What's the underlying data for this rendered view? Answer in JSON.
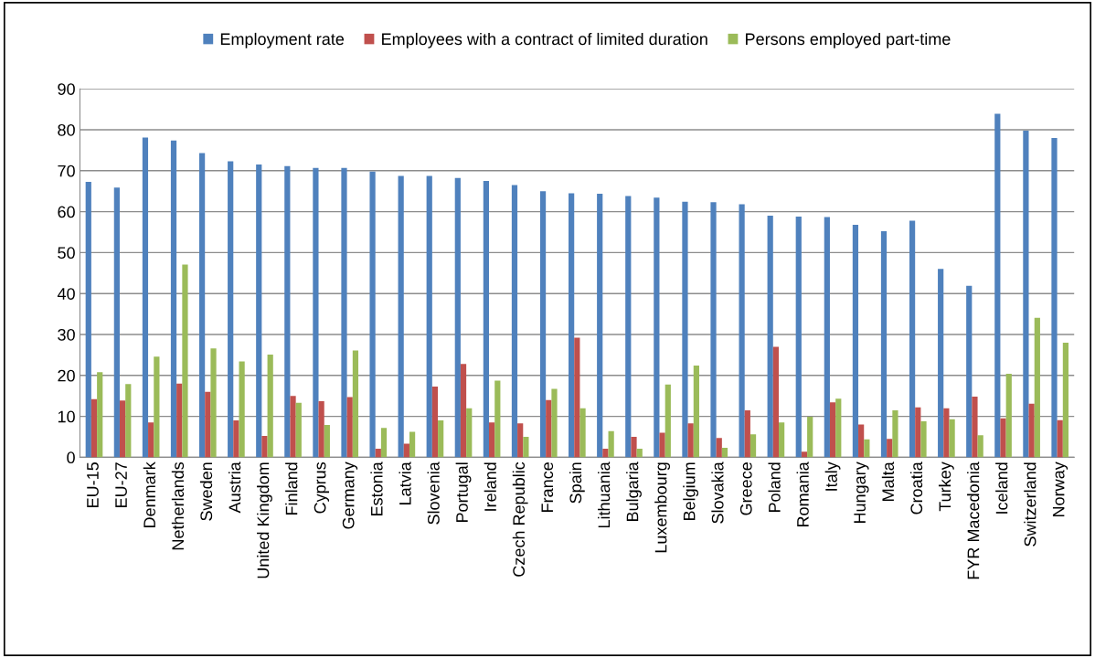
{
  "chart_data": {
    "type": "bar",
    "categories": [
      "EU-15",
      "EU-27",
      "Denmark",
      "Netherlands",
      "Sweden",
      "Austria",
      "United Kingdom",
      "Finland",
      "Cyprus",
      "Germany",
      "Estonia",
      "Latvia",
      "Slovenia",
      "Portugal",
      "Ireland",
      "Czech Republic",
      "France",
      "Spain",
      "Lithuania",
      "Bulgaria",
      "Luxembourg",
      "Belgium",
      "Slovakia",
      "Greece",
      "Poland",
      "Romania",
      "Italy",
      "Hungary",
      "Malta",
      "Croatia",
      "Turkey",
      "FYR Macedonia",
      "Iceland",
      "Switzerland",
      "Norway"
    ],
    "series": [
      {
        "name": "Employment rate",
        "color": "#4f81bd",
        "values": [
          67.3,
          65.9,
          78.1,
          77.4,
          74.3,
          72.3,
          71.5,
          71.1,
          70.7,
          70.7,
          69.8,
          68.7,
          68.7,
          68.2,
          67.5,
          66.5,
          65.0,
          64.5,
          64.4,
          63.8,
          63.4,
          62.4,
          62.3,
          61.8,
          59.0,
          58.8,
          58.7,
          56.8,
          55.2,
          57.8,
          46.0,
          41.9,
          83.9,
          79.8,
          78.0
        ]
      },
      {
        "name": "Employees with a contract of limited duration",
        "color": "#c0504d",
        "values": [
          14.2,
          13.9,
          8.5,
          18.0,
          16.0,
          9.0,
          5.2,
          15.0,
          13.7,
          14.7,
          2.1,
          3.3,
          17.3,
          22.8,
          8.5,
          8.3,
          14.0,
          29.2,
          2.1,
          5.0,
          6.0,
          8.3,
          4.7,
          11.5,
          27.0,
          1.4,
          13.4,
          8.0,
          4.5,
          12.2,
          12.0,
          14.8,
          9.5,
          13.1,
          9.1
        ]
      },
      {
        "name": "Persons employed part-time",
        "color": "#9bbb59",
        "values": [
          20.8,
          17.9,
          24.6,
          47.1,
          26.6,
          23.4,
          25.1,
          13.3,
          7.9,
          26.1,
          7.2,
          6.2,
          9.0,
          12.0,
          18.7,
          5.0,
          16.7,
          12.0,
          6.4,
          2.1,
          17.8,
          22.4,
          2.3,
          5.6,
          8.5,
          9.9,
          14.3,
          4.4,
          11.5,
          8.8,
          9.3,
          5.4,
          20.4,
          34.1,
          28.0
        ]
      }
    ],
    "ylim": [
      0,
      90
    ],
    "yticks": [
      0,
      10,
      20,
      30,
      40,
      50,
      60,
      70,
      80,
      90
    ],
    "grid": "y",
    "legend": "top"
  }
}
